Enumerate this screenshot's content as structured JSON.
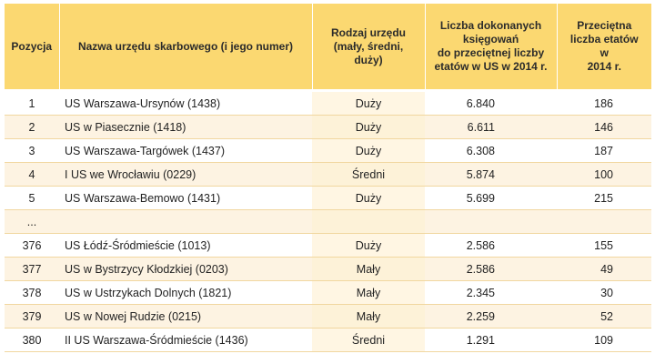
{
  "headers": {
    "position": "Pozycja",
    "name": "Nazwa urzędu skarbowego (i jego numer)",
    "type_lines": [
      "Rodzaj urzędu",
      "(mały, średni,",
      "duży)"
    ],
    "ops_lines": [
      "Liczba dokonanych",
      "księgowań",
      "do przeciętnej liczby",
      "etatów w US w 2014 r."
    ],
    "fte_lines": [
      "Przeciętna",
      "liczba etatów",
      "w",
      "2014 r."
    ]
  },
  "rows": [
    {
      "pos": "1",
      "name": "US Warszawa-Ursynów (1438)",
      "type": "Duży",
      "ops": "6.840",
      "fte": "186"
    },
    {
      "pos": "2",
      "name": "US w Piasecznie (1418)",
      "type": "Duży",
      "ops": "6.611",
      "fte": "146"
    },
    {
      "pos": "3",
      "name": "US Warszawa-Targówek (1437)",
      "type": "Duży",
      "ops": "6.308",
      "fte": "187"
    },
    {
      "pos": "4",
      "name": "I US we Wrocławiu (0229)",
      "type": "Średni",
      "ops": "5.874",
      "fte": "100"
    },
    {
      "pos": "5",
      "name": "US Warszawa-Bemowo (1431)",
      "type": "Duży",
      "ops": "5.699",
      "fte": "215"
    },
    {
      "pos": "...",
      "name": "",
      "type": "",
      "ops": "",
      "fte": ""
    },
    {
      "pos": "376",
      "name": "US Łódź-Śródmieście (1013)",
      "type": "Duży",
      "ops": "2.586",
      "fte": "155"
    },
    {
      "pos": "377",
      "name": "US w Bystrzycy Kłodzkiej (0203)",
      "type": "Mały",
      "ops": "2.586",
      "fte": "49"
    },
    {
      "pos": "378",
      "name": "US w Ustrzykach Dolnych (1821)",
      "type": "Mały",
      "ops": "2.345",
      "fte": "30"
    },
    {
      "pos": "379",
      "name": "US w Nowej Rudzie (0215)",
      "type": "Mały",
      "ops": "2.259",
      "fte": "52"
    },
    {
      "pos": "380",
      "name": "II US Warszawa-Śródmieście (1436)",
      "type": "Średni",
      "ops": "1.291",
      "fte": "109"
    }
  ]
}
